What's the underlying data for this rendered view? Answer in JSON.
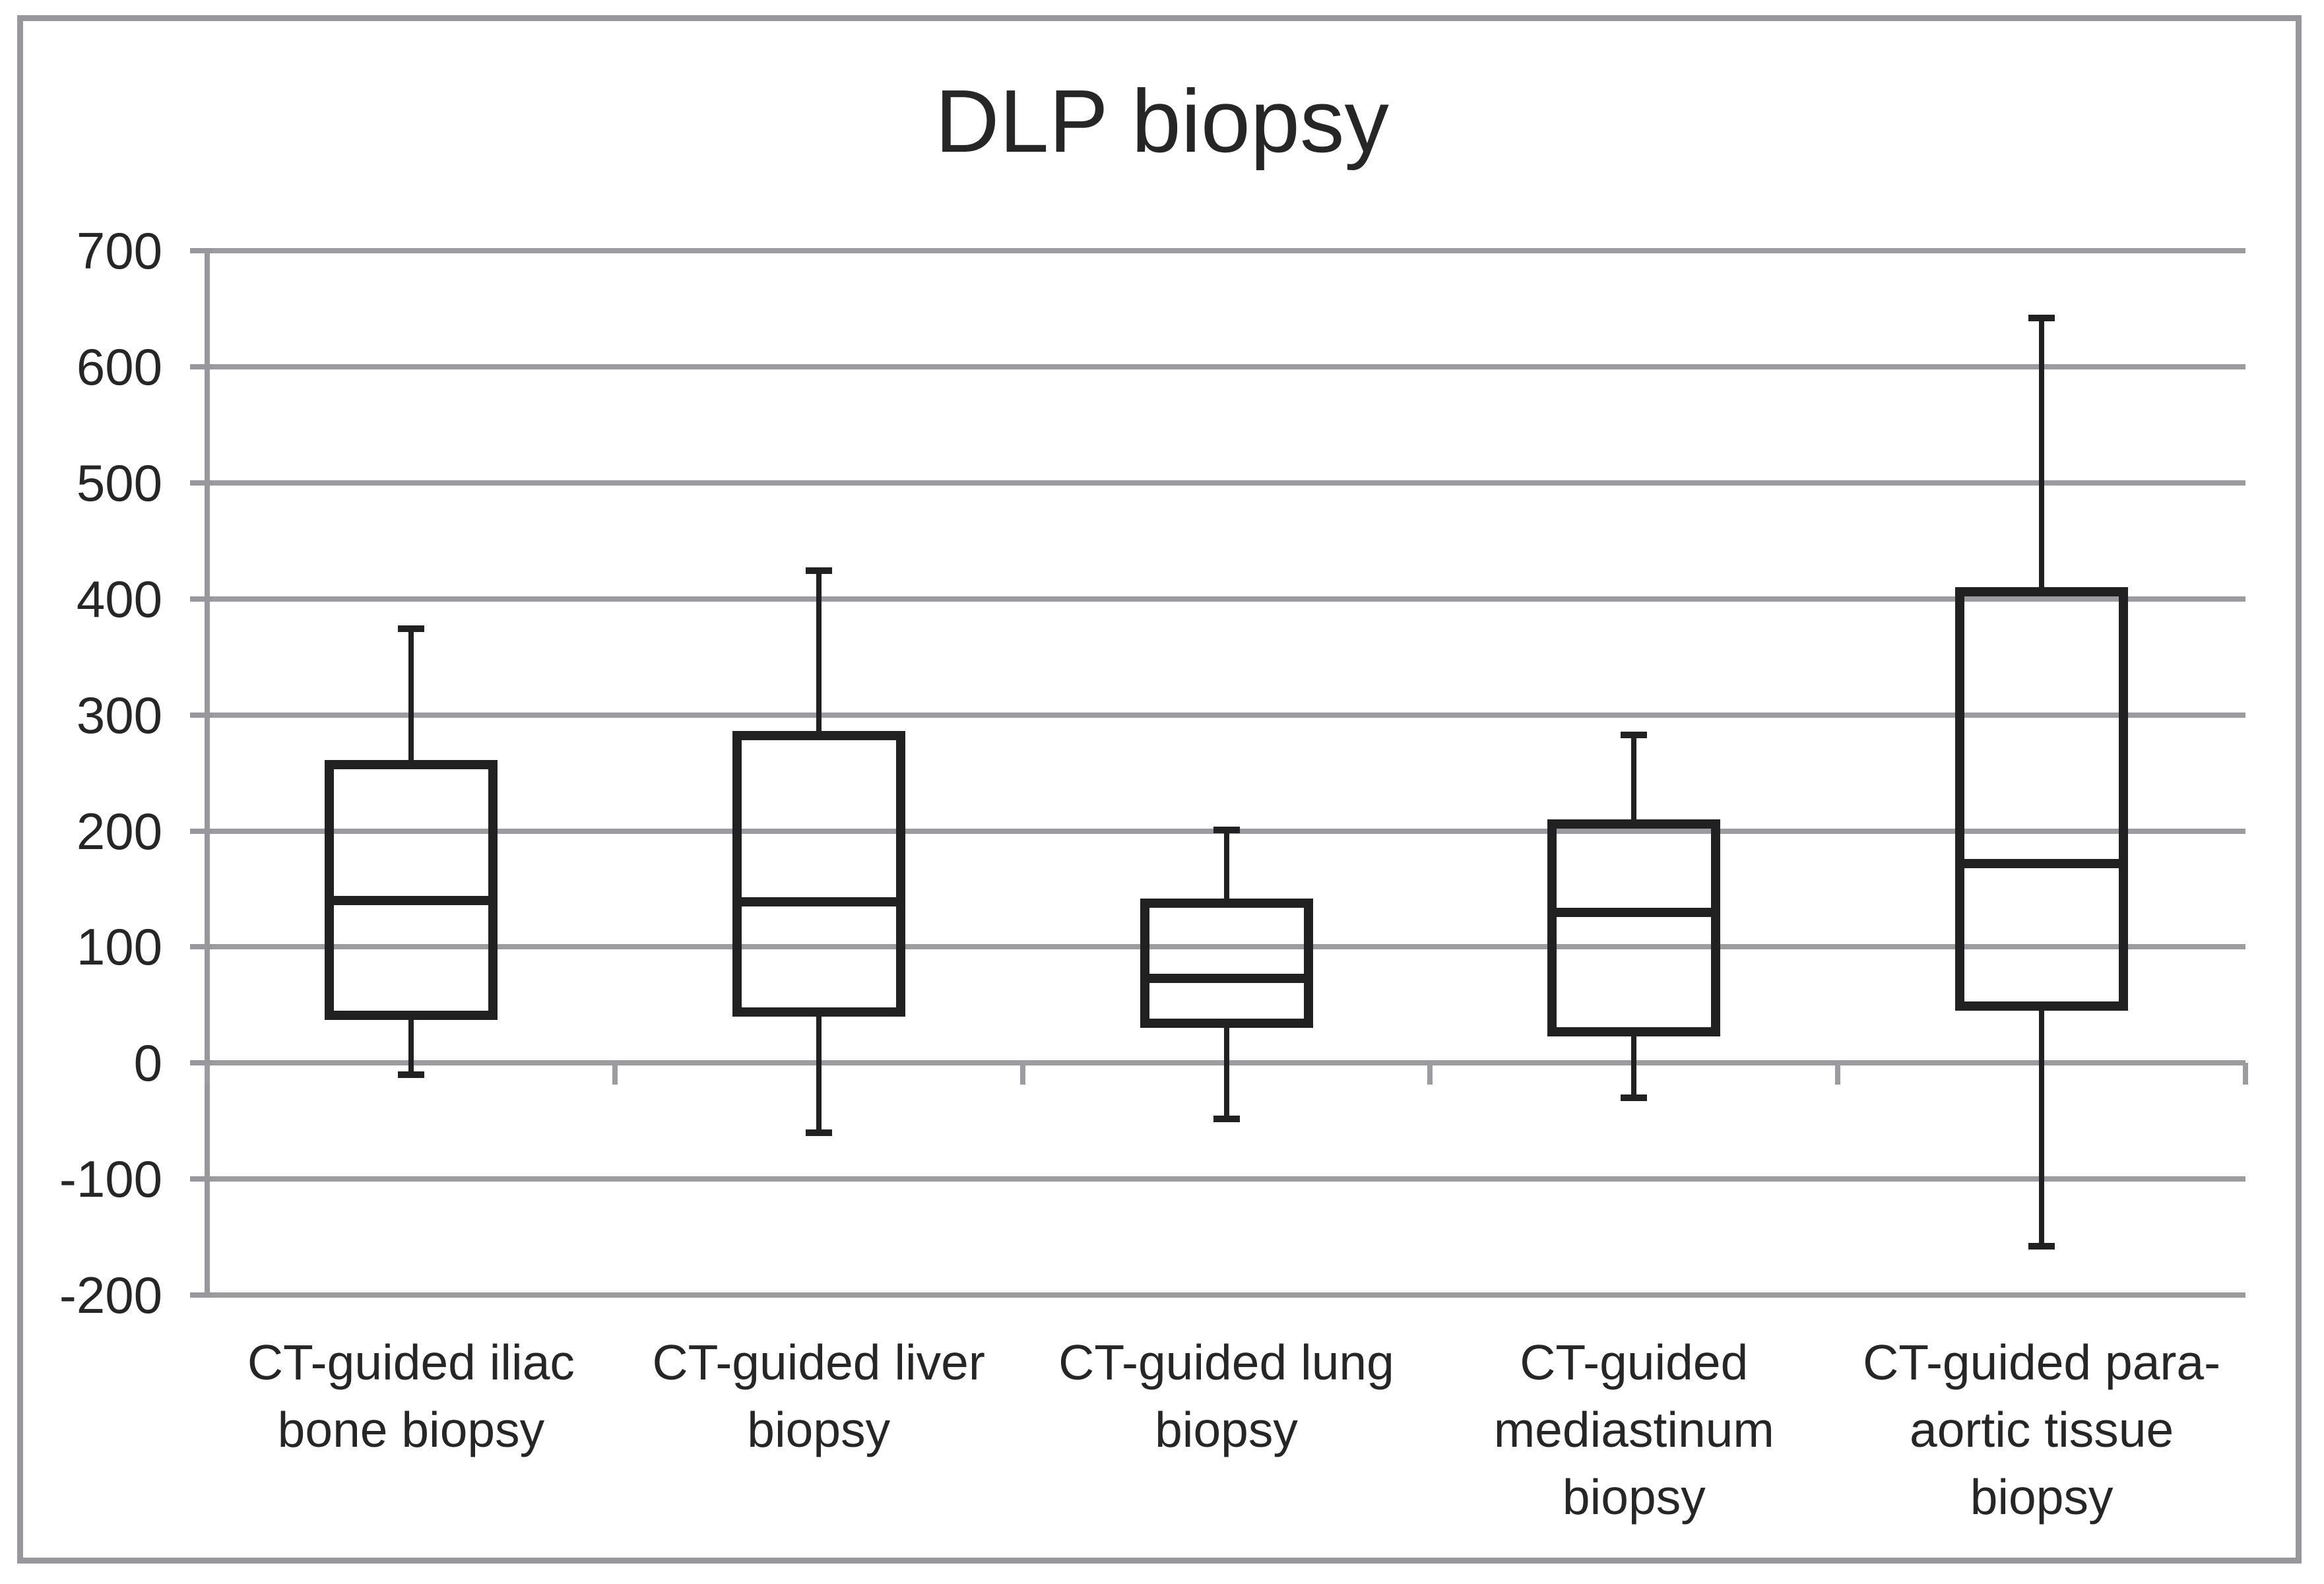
{
  "title": "DLP biopsy",
  "colors": {
    "frame": "#97979c",
    "gridline": "#9b9ba0",
    "box_stroke": "#212121",
    "text": "#262626",
    "background": "#ffffff"
  },
  "chart_data": {
    "type": "boxplot",
    "title": "DLP biopsy",
    "xlabel": "",
    "ylabel": "",
    "ylim": [
      -200,
      700
    ],
    "ytick_step": 100,
    "ytick_labels": [
      "700",
      "600",
      "500",
      "400",
      "300",
      "200",
      "100",
      "0",
      "-100",
      "-200"
    ],
    "grid": true,
    "legend": "none",
    "categories": [
      "CT-guided iliac\nbone biopsy",
      "CT-guided liver\nbiopsy",
      "CT-guided lung\nbiopsy",
      "CT-guided\nmediastinum\nbiopsy",
      "CT-guided para-\naortic tissue\nbiopsy"
    ],
    "boxes": [
      {
        "category": "CT-guided iliac\nbone biopsy",
        "min": -10,
        "q1": 41,
        "median": 140,
        "q3": 257,
        "max": 374
      },
      {
        "category": "CT-guided liver\nbiopsy",
        "min": -60,
        "q1": 44,
        "median": 139,
        "q3": 282,
        "max": 424
      },
      {
        "category": "CT-guided lung\nbiopsy",
        "min": -48,
        "q1": 34,
        "median": 73,
        "q3": 138,
        "max": 201
      },
      {
        "category": "CT-guided\nmediastinum\nbiopsy",
        "min": -30,
        "q1": 27,
        "median": 130,
        "q3": 206,
        "max": 283
      },
      {
        "category": "CT-guided para-\naortic tissue\nbiopsy",
        "min": -158,
        "q1": 49,
        "median": 172,
        "q3": 406,
        "max": 642
      }
    ]
  }
}
